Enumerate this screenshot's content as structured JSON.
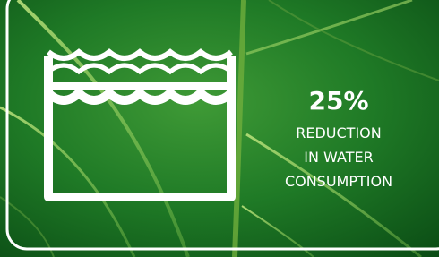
{
  "stat": "25%",
  "label_lines": [
    "REDUCTION",
    "IN WATER",
    "CONSUMPTION"
  ]
}
